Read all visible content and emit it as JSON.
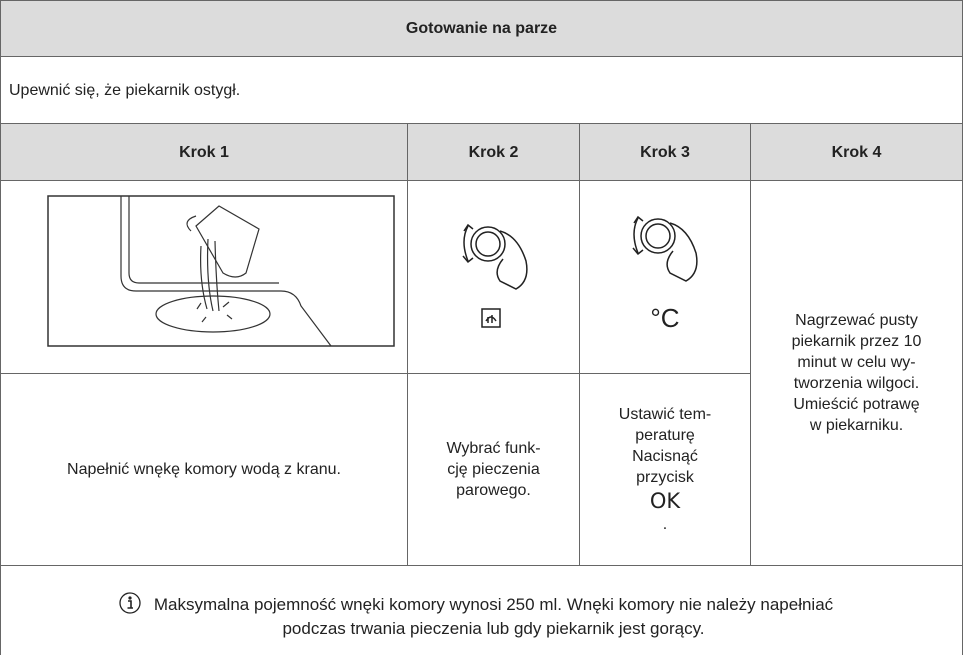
{
  "title": "Gotowanie na parze",
  "intro": "Upewnić się, że piekarnik ostygł.",
  "steps": [
    {
      "label": "Krok 1",
      "text": [
        "Napełnić wnękę komory wodą z kranu."
      ]
    },
    {
      "label": "Krok 2",
      "text": [
        "Wybrać funk-",
        "cję pieczenia",
        "parowego."
      ]
    },
    {
      "label": "Krok 3",
      "symbol": "°C",
      "text": [
        "Ustawić tem-",
        "peraturę",
        "Nacisnąć",
        "przycisk",
        "OK",
        "."
      ]
    },
    {
      "label": "Krok 4",
      "text": [
        "Nagrzewać pusty",
        "piekarnik przez 10",
        "minut w celu wy-",
        "tworzenia wilgoci.",
        "Umieścić potrawę",
        "w piekarniku."
      ]
    }
  ],
  "note": [
    "Maksymalna pojemność wnęki komory wynosi 250 ml. Wnęki komory nie należy napełniać",
    "podczas trwania pieczenia lub gdy piekarnik jest gorący."
  ]
}
